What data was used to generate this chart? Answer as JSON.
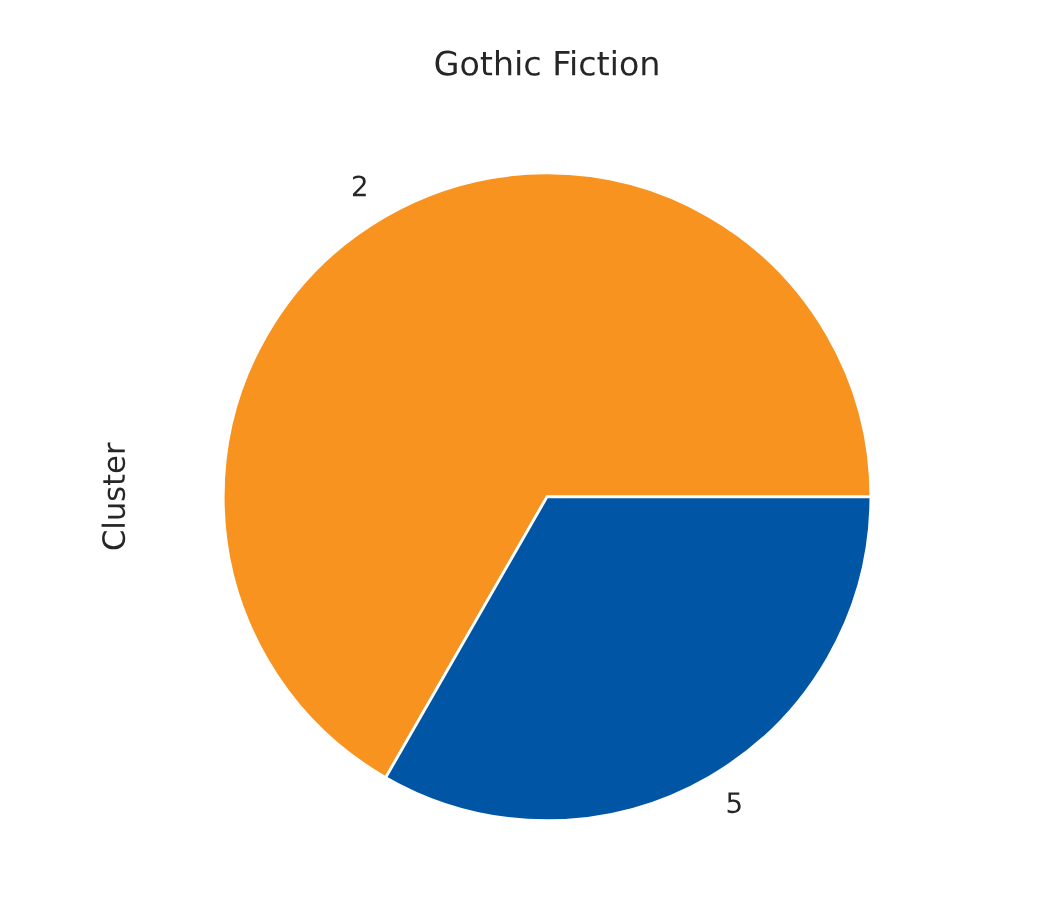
{
  "chart_data": {
    "type": "pie",
    "title": "Gothic Fiction",
    "ylabel": "Cluster",
    "categories": [
      "2",
      "5"
    ],
    "values": [
      66.7,
      33.3
    ],
    "colors": [
      "#f7931e",
      "#0055a5"
    ]
  }
}
